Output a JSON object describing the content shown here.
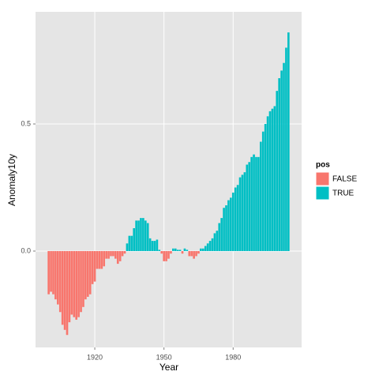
{
  "chart_data": {
    "type": "bar",
    "x_label": "Year",
    "y_label": "Anomaly10y",
    "x": [
      1900,
      1901,
      1902,
      1903,
      1904,
      1905,
      1906,
      1907,
      1908,
      1909,
      1910,
      1911,
      1912,
      1913,
      1914,
      1915,
      1916,
      1917,
      1918,
      1919,
      1920,
      1921,
      1922,
      1923,
      1924,
      1925,
      1926,
      1927,
      1928,
      1929,
      1930,
      1931,
      1932,
      1933,
      1934,
      1935,
      1936,
      1937,
      1938,
      1939,
      1940,
      1941,
      1942,
      1943,
      1944,
      1945,
      1946,
      1947,
      1948,
      1949,
      1950,
      1951,
      1952,
      1953,
      1954,
      1955,
      1956,
      1957,
      1958,
      1959,
      1960,
      1961,
      1962,
      1963,
      1964,
      1965,
      1966,
      1967,
      1968,
      1969,
      1970,
      1971,
      1972,
      1973,
      1974,
      1975,
      1976,
      1977,
      1978,
      1979,
      1980,
      1981,
      1982,
      1983,
      1984,
      1985,
      1986,
      1987,
      1988,
      1989,
      1990,
      1991,
      1992,
      1993,
      1994,
      1995,
      1996,
      1997,
      1998,
      1999,
      2000,
      2001,
      2002,
      2003,
      2004
    ],
    "values": [
      -0.17,
      -0.16,
      -0.17,
      -0.19,
      -0.21,
      -0.24,
      -0.29,
      -0.31,
      -0.33,
      -0.28,
      -0.25,
      -0.26,
      -0.27,
      -0.26,
      -0.24,
      -0.22,
      -0.19,
      -0.18,
      -0.17,
      -0.13,
      -0.12,
      -0.07,
      -0.07,
      -0.07,
      -0.06,
      -0.03,
      -0.03,
      -0.02,
      -0.02,
      -0.03,
      -0.05,
      -0.04,
      -0.02,
      -0.01,
      0.03,
      0.06,
      0.06,
      0.09,
      0.12,
      0.12,
      0.13,
      0.13,
      0.12,
      0.11,
      0.05,
      0.04,
      0.04,
      0.045,
      0.005,
      -0.01,
      -0.04,
      -0.04,
      -0.03,
      -0.01,
      0.01,
      0.01,
      0.005,
      0.005,
      -0.01,
      0.01,
      0.005,
      -0.02,
      -0.02,
      -0.03,
      -0.02,
      -0.01,
      0.01,
      0.01,
      0.02,
      0.03,
      0.04,
      0.05,
      0.07,
      0.08,
      0.11,
      0.13,
      0.17,
      0.18,
      0.2,
      0.21,
      0.23,
      0.25,
      0.26,
      0.29,
      0.3,
      0.31,
      0.34,
      0.35,
      0.37,
      0.38,
      0.37,
      0.37,
      0.43,
      0.47,
      0.5,
      0.53,
      0.55,
      0.56,
      0.57,
      0.63,
      0.68,
      0.71,
      0.74,
      0.8,
      0.86
    ],
    "legend": {
      "title": "pos",
      "entries": [
        {
          "name": "FALSE",
          "color": "#F8766D"
        },
        {
          "name": "TRUE",
          "color": "#00BFC4"
        }
      ]
    },
    "xlim": [
      1894.3,
      2009.7
    ],
    "xticks": [
      1920,
      1950,
      1980
    ],
    "ylim": [
      -0.379,
      0.941
    ],
    "yticks": [
      {
        "value": 0,
        "label": "0.0"
      },
      0.5
    ],
    "grid": true
  }
}
